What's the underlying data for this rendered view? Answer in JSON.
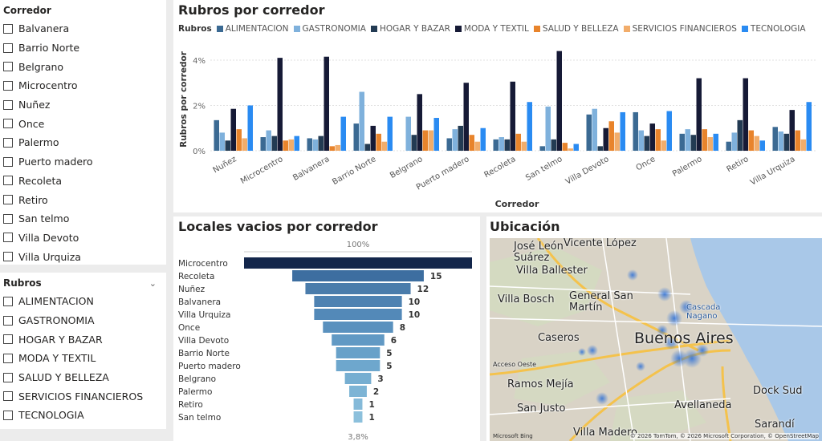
{
  "slicer_corredor": {
    "title": "Corredor",
    "items": [
      "Balvanera",
      "Barrio Norte",
      "Belgrano",
      "Microcentro",
      "Nuñez",
      "Once",
      "Palermo",
      "Puerto madero",
      "Recoleta",
      "Retiro",
      "San telmo",
      "Villa Devoto",
      "Villa Urquiza"
    ]
  },
  "slicer_rubros": {
    "title": "Rubros",
    "items": [
      "ALIMENTACION",
      "GASTRONOMIA",
      "HOGAR Y BAZAR",
      "MODA Y TEXTIL",
      "SALUD Y BELLEZA",
      "SERVICIOS FINANCIEROS",
      "TECNOLOGIA"
    ]
  },
  "chart1": {
    "title": "Rubros por corredor",
    "legend_title": "Rubros"
  },
  "chart_data": [
    {
      "type": "bar",
      "title": "Rubros por corredor",
      "xlabel": "Corredor",
      "ylabel": "Rubros por corredor",
      "yticks": [
        "0%",
        "2%",
        "4%"
      ],
      "ylim": [
        0,
        4.6
      ],
      "categories": [
        "Nuñez",
        "Microcentro",
        "Balvanera",
        "Barrio Norte",
        "Belgrano",
        "Puerto madero",
        "Recoleta",
        "San telmo",
        "Villa Devoto",
        "Once",
        "Palermo",
        "Retiro",
        "Villa Urquiza"
      ],
      "series": [
        {
          "name": "ALIMENTACION",
          "color": "#3b6a93",
          "values": [
            1.35,
            0.6,
            0.55,
            1.2,
            0.0,
            0.55,
            0.5,
            0.2,
            1.6,
            1.7,
            0.75,
            0.4,
            1.05
          ]
        },
        {
          "name": "GASTRONOMIA",
          "color": "#7fb1dc",
          "values": [
            0.8,
            0.9,
            0.5,
            2.6,
            1.5,
            0.95,
            0.6,
            1.95,
            1.85,
            0.9,
            0.95,
            0.8,
            0.85
          ]
        },
        {
          "name": "HOGAR Y BAZAR",
          "color": "#233b53",
          "values": [
            0.45,
            0.65,
            0.65,
            0.3,
            0.7,
            1.1,
            0.5,
            0.5,
            0.2,
            0.65,
            0.7,
            1.35,
            0.75
          ]
        },
        {
          "name": "MODA Y TEXTIL",
          "color": "#161a36",
          "values": [
            1.85,
            4.1,
            4.15,
            1.1,
            2.5,
            3.0,
            3.05,
            4.4,
            1.0,
            1.2,
            3.2,
            3.2,
            1.8
          ]
        },
        {
          "name": "SALUD Y BELLEZA",
          "color": "#e8842c",
          "values": [
            0.95,
            0.45,
            0.2,
            0.75,
            0.9,
            0.7,
            0.75,
            0.35,
            1.3,
            0.95,
            0.95,
            0.9,
            0.9
          ]
        },
        {
          "name": "SERVICIOS FINANCIEROS",
          "color": "#f2ad6b",
          "values": [
            0.55,
            0.5,
            0.25,
            0.4,
            0.9,
            0.4,
            0.4,
            0.1,
            0.8,
            0.45,
            0.6,
            0.65,
            0.5
          ]
        },
        {
          "name": "TECNOLOGIA",
          "color": "#2a8bf2",
          "values": [
            2.0,
            0.65,
            1.5,
            1.5,
            1.45,
            1.0,
            2.15,
            0.3,
            1.7,
            1.75,
            0.75,
            0.45,
            2.15
          ]
        }
      ]
    },
    {
      "type": "funnel",
      "title": "Locales vacios por corredor",
      "top_label": "100%",
      "bottom_label": "3,8%",
      "categories": [
        "Microcentro",
        "Recoleta",
        "Nuñez",
        "Balvanera",
        "Villa Urquiza",
        "Once",
        "Villa Devoto",
        "Barrio Norte",
        "Puerto madero",
        "Belgrano",
        "Palermo",
        "Retiro",
        "San telmo"
      ],
      "values": [
        26,
        15,
        12,
        10,
        10,
        8,
        6,
        5,
        5,
        3,
        2,
        1,
        1
      ],
      "value_labels": [
        "",
        "15",
        "12",
        "10",
        "10",
        "8",
        "6",
        "5",
        "5",
        "3",
        "2",
        "1",
        "1"
      ]
    }
  ],
  "map": {
    "title": "Ubicación",
    "labels": [
      {
        "text": "Vicente López",
        "big": false
      },
      {
        "text": "José León\nSuárez",
        "big": false
      },
      {
        "text": "Villa Ballester",
        "big": false
      },
      {
        "text": "Villa Bosch",
        "big": false
      },
      {
        "text": "General San\nMartín",
        "big": false
      },
      {
        "text": "Cascada\nNagano",
        "big": false
      },
      {
        "text": "Caseros",
        "big": false
      },
      {
        "text": "Buenos Aires",
        "big": true
      },
      {
        "text": "Ramos Mejía",
        "big": false
      },
      {
        "text": "Dock Sud",
        "big": false
      },
      {
        "text": "San Justo",
        "big": false
      },
      {
        "text": "Avellaneda",
        "big": false
      },
      {
        "text": "Villa Madero",
        "big": false
      },
      {
        "text": "Sarandí",
        "big": false
      },
      {
        "text": "Acceso Oeste",
        "big": false
      }
    ],
    "copyright": "© 2026 TomTom, © 2026 Microsoft Corporation, © OpenStreetMap",
    "logo": "Microsoft Bing"
  }
}
